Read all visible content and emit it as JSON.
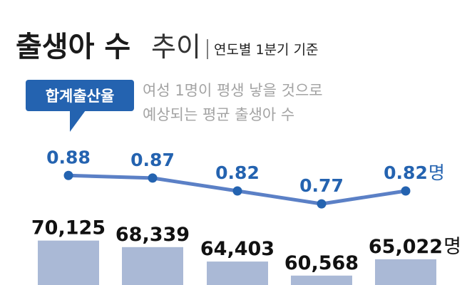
{
  "header": {
    "title_main": "출생아 수",
    "title_sub": "추이",
    "period": "연도별 1분기 기준"
  },
  "legend": {
    "rate_badge": "합계출산율",
    "rate_desc_line1": "여성 1명이 평생 낳을 것으로",
    "rate_desc_line2": "예상되는 평균 출생아 수"
  },
  "colors": {
    "line": "#5b80c6",
    "badge": "#2463b0",
    "bar": "#aab9d6",
    "rate_text": "#2463b0"
  },
  "chart_data": [
    {
      "type": "line",
      "series": [
        {
          "name": "합계출산율",
          "values": [
            0.88,
            0.87,
            0.82,
            0.77,
            0.82
          ],
          "labels": [
            "0.88",
            "0.87",
            "0.82",
            "0.77",
            "0.82"
          ],
          "unit": "명"
        }
      ],
      "ylim": [
        0.74,
        0.9
      ]
    },
    {
      "type": "bar",
      "series": [
        {
          "name": "출생아 수",
          "values": [
            70125,
            68339,
            64403,
            60568,
            65022
          ],
          "labels": [
            "70,125",
            "68,339",
            "64,403",
            "60,568",
            "65,022"
          ],
          "unit": "명"
        }
      ],
      "ylim": [
        58000,
        72000
      ]
    }
  ]
}
